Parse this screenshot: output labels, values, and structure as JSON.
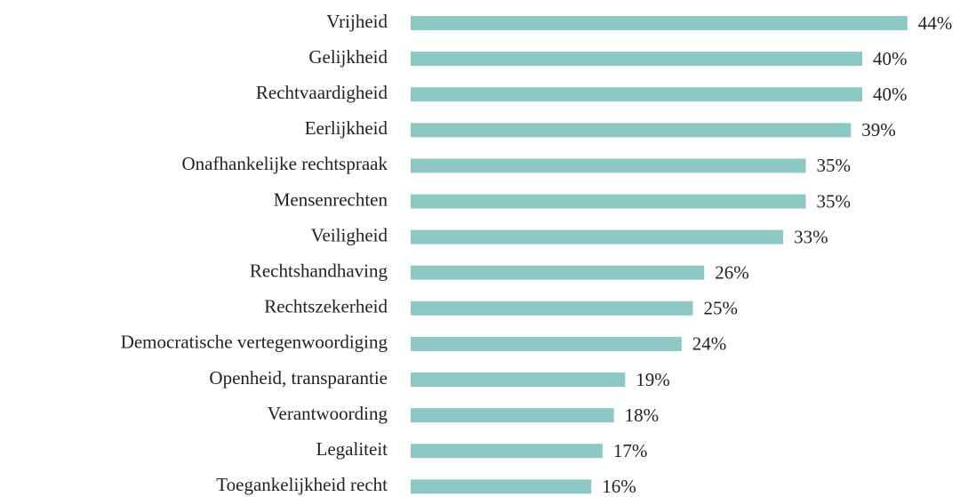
{
  "chart_data": {
    "type": "bar",
    "orientation": "horizontal",
    "color": "#8dc7c6",
    "categories": [
      "Vrijheid",
      "Gelijkheid",
      "Rechtvaardigheid",
      "Eerlijkheid",
      "Onafhankelijke rechtspraak",
      "Mensenrechten",
      "Veiligheid",
      "Rechtshandhaving",
      "Rechtszekerheid",
      "Democratische vertegenwoordiging",
      "Openheid, transparantie",
      "Verantwoording",
      "Legaliteit",
      "Toegankelijkheid recht"
    ],
    "values": [
      44,
      40,
      40,
      39,
      35,
      35,
      33,
      26,
      25,
      24,
      19,
      18,
      17,
      16
    ],
    "value_labels": [
      "44%",
      "40%",
      "40%",
      "39%",
      "35%",
      "35%",
      "33%",
      "26%",
      "25%",
      "24%",
      "19%",
      "18%",
      "17%",
      "16%"
    ]
  }
}
